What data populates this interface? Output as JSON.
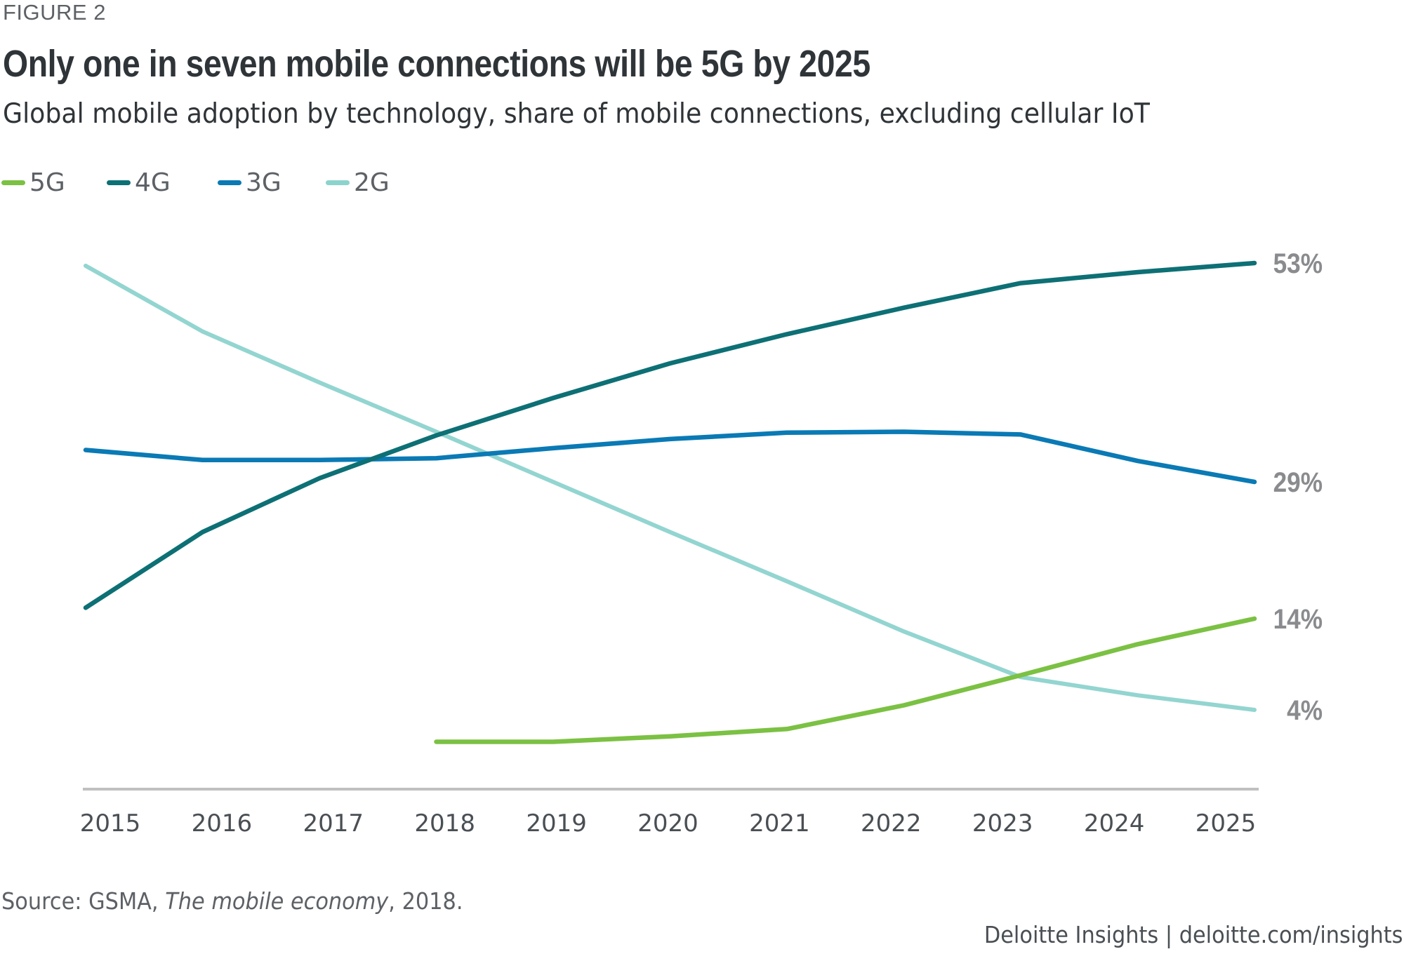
{
  "figure_label": "FIGURE 2",
  "title": "Only one in seven mobile connections will be 5G by 2025",
  "subtitle": "Global mobile adoption by technology, share of mobile connections, excluding cellular IoT",
  "source": {
    "prefix": "Source: GSMA, ",
    "italic": "The mobile economy",
    "suffix": ", 2018."
  },
  "footer": "Deloitte Insights | deloitte.com/insights",
  "chart_data": {
    "type": "line",
    "title": "Only one in seven mobile connections will be 5G by 2025",
    "subtitle": "Global mobile adoption by technology, share of mobile connections, excluding cellular IoT",
    "xlabel": "",
    "ylabel": "",
    "x": [
      2015,
      2016,
      2017,
      2018,
      2019,
      2020,
      2021,
      2022,
      2023,
      2024,
      2025
    ],
    "ylim": [
      0,
      55
    ],
    "grid": false,
    "legend_position": "top-left",
    "series": [
      {
        "name": "5G",
        "color": "#7bc143",
        "values": [
          null,
          null,
          null,
          0.5,
          0.5,
          1.1,
          1.9,
          4.5,
          7.8,
          11.2,
          14
        ],
        "end_label": "14%"
      },
      {
        "name": "4G",
        "color": "#0d7075",
        "values": [
          15.2,
          23.5,
          29.4,
          34.1,
          38.2,
          42.0,
          45.2,
          48.1,
          50.8,
          52.0,
          53
        ],
        "end_label": "53%"
      },
      {
        "name": "3G",
        "color": "#0a7ab5",
        "values": [
          32.5,
          31.4,
          31.4,
          31.6,
          32.7,
          33.7,
          34.4,
          34.5,
          34.2,
          31.3,
          29
        ],
        "end_label": "29%"
      },
      {
        "name": "2G",
        "color": "#8dd3cd",
        "values": [
          52.7,
          45.5,
          39.9,
          34.5,
          29.0,
          23.5,
          18.1,
          12.6,
          7.6,
          5.6,
          4
        ],
        "end_label": "4%"
      }
    ],
    "x_tick_labels": [
      "2015",
      "2016",
      "2017",
      "2018",
      "2019",
      "2020",
      "2021",
      "2022",
      "2023",
      "2024",
      "2025"
    ],
    "axis_color": "#c0c0c0",
    "end_label_color": "#8a8b8e"
  }
}
